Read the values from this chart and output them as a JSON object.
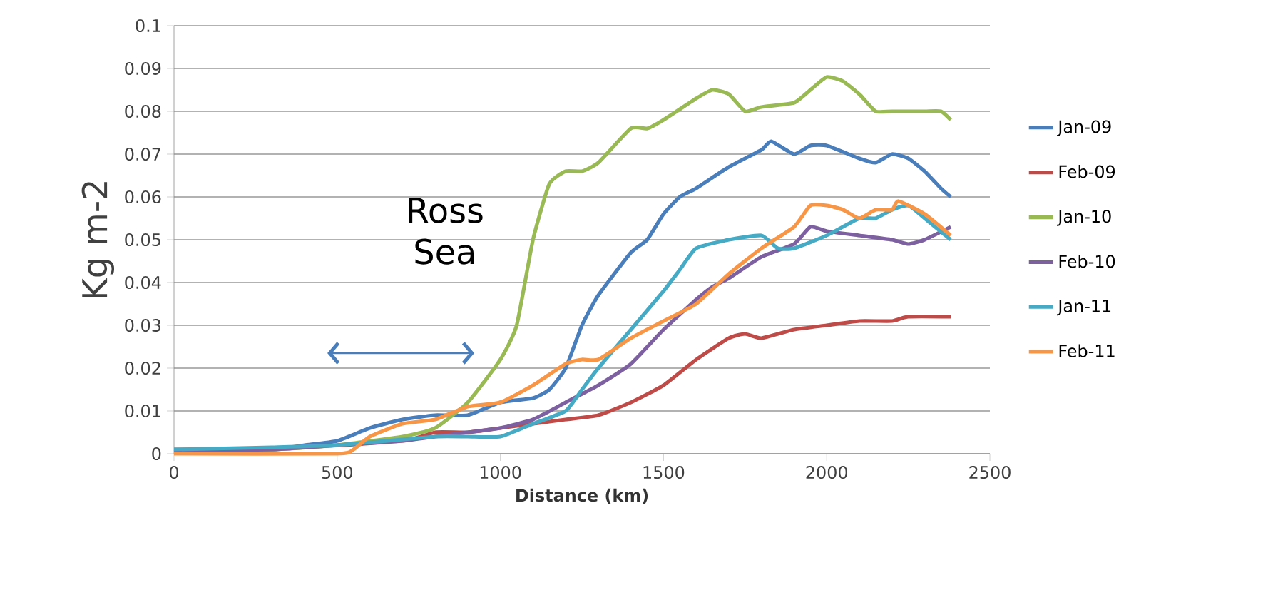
{
  "chart_data": {
    "type": "line",
    "xlabel": "Distance (km)",
    "ylabel": "Kg m-2",
    "annotations": [
      "Ross Sea"
    ],
    "xlim": [
      0,
      2500
    ],
    "xticks": [
      0,
      500,
      1000,
      1500,
      2000,
      2500
    ],
    "ylim": [
      0,
      0.1
    ],
    "yticks": [
      0,
      0.01,
      0.02,
      0.03,
      0.04,
      0.05,
      0.06,
      0.07,
      0.08,
      0.09,
      0.1
    ],
    "grid": "y",
    "legend": "right",
    "marker": "none",
    "line_style": "solid",
    "series": [
      {
        "name": "Jan-09",
        "color": "#4a7ebb",
        "x": [
          0,
          300,
          400,
          500,
          600,
          700,
          800,
          900,
          1000,
          1100,
          1150,
          1200,
          1250,
          1300,
          1400,
          1450,
          1500,
          1550,
          1600,
          1700,
          1800,
          1830,
          1900,
          1950,
          2000,
          2100,
          2150,
          2200,
          2250,
          2300,
          2350,
          2380
        ],
        "values": [
          0.001,
          0.001,
          0.002,
          0.003,
          0.006,
          0.008,
          0.009,
          0.009,
          0.012,
          0.013,
          0.015,
          0.02,
          0.03,
          0.037,
          0.047,
          0.05,
          0.056,
          0.06,
          0.062,
          0.067,
          0.071,
          0.073,
          0.07,
          0.072,
          0.072,
          0.069,
          0.068,
          0.07,
          0.069,
          0.066,
          0.062,
          0.06
        ]
      },
      {
        "name": "Feb-09",
        "color": "#be4b48",
        "x": [
          0,
          300,
          500,
          700,
          800,
          900,
          1000,
          1100,
          1200,
          1300,
          1400,
          1500,
          1600,
          1700,
          1750,
          1800,
          1900,
          2000,
          2100,
          2200,
          2250,
          2380
        ],
        "values": [
          0.0005,
          0.001,
          null,
          0.003,
          0.005,
          0.005,
          0.006,
          0.007,
          0.008,
          0.009,
          0.012,
          0.016,
          0.022,
          0.027,
          0.028,
          0.027,
          0.029,
          0.03,
          0.031,
          0.031,
          0.032,
          0.032
        ]
      },
      {
        "name": "Jan-10",
        "color": "#98b954",
        "x": [
          0,
          300,
          500,
          700,
          800,
          900,
          1000,
          1050,
          1100,
          1150,
          1200,
          1250,
          1300,
          1400,
          1450,
          1500,
          1600,
          1650,
          1700,
          1750,
          1800,
          1900,
          1950,
          2000,
          2050,
          2100,
          2150,
          2200,
          2300,
          2350,
          2380
        ],
        "values": [
          0.0005,
          0.001,
          0.002,
          0.004,
          0.006,
          0.012,
          0.022,
          0.03,
          0.05,
          0.063,
          0.066,
          0.066,
          0.068,
          0.076,
          0.076,
          0.078,
          0.083,
          0.085,
          0.084,
          0.08,
          0.081,
          0.082,
          0.085,
          0.088,
          0.087,
          0.084,
          0.08,
          0.08,
          0.08,
          0.08,
          0.078
        ]
      },
      {
        "name": "Feb-10",
        "color": "#7d60a0",
        "x": [
          0,
          300,
          500,
          700,
          800,
          900,
          1000,
          1100,
          1200,
          1300,
          1400,
          1500,
          1600,
          1650,
          1700,
          1800,
          1900,
          1950,
          2000,
          2100,
          2200,
          2250,
          2300,
          2380
        ],
        "values": [
          0.0005,
          0.001,
          0.002,
          0.003,
          0.004,
          0.005,
          0.006,
          0.008,
          0.012,
          0.016,
          0.021,
          0.029,
          0.036,
          0.039,
          0.041,
          0.046,
          0.049,
          0.053,
          0.052,
          0.051,
          0.05,
          0.049,
          0.05,
          0.053
        ]
      },
      {
        "name": "Jan-11",
        "color": "#46aac5",
        "x": [
          0,
          300,
          500,
          800,
          900,
          1000,
          1100,
          1200,
          1250,
          1300,
          1400,
          1500,
          1550,
          1600,
          1700,
          1800,
          1850,
          1900,
          2000,
          2100,
          2150,
          2200,
          2250,
          2300,
          2380
        ],
        "values": [
          0.001,
          0.0015,
          0.002,
          0.004,
          0.004,
          0.004,
          0.007,
          0.01,
          0.015,
          0.02,
          0.029,
          0.038,
          0.043,
          0.048,
          0.05,
          0.051,
          0.048,
          0.048,
          0.051,
          0.055,
          0.055,
          0.057,
          0.058,
          0.055,
          0.05
        ]
      },
      {
        "name": "Feb-11",
        "color": "#f79646",
        "x": [
          0,
          500,
          550,
          600,
          700,
          800,
          900,
          1000,
          1100,
          1200,
          1250,
          1300,
          1400,
          1500,
          1600,
          1700,
          1800,
          1900,
          1950,
          2000,
          2050,
          2100,
          2150,
          2200,
          2220,
          2300,
          2380
        ],
        "values": [
          0,
          0,
          0.001,
          0.004,
          0.007,
          0.008,
          0.011,
          0.012,
          0.016,
          0.021,
          0.022,
          0.022,
          0.027,
          0.031,
          0.035,
          0.042,
          0.048,
          0.053,
          0.058,
          0.058,
          0.057,
          0.055,
          0.057,
          0.057,
          0.059,
          0.056,
          0.051
        ]
      }
    ]
  }
}
